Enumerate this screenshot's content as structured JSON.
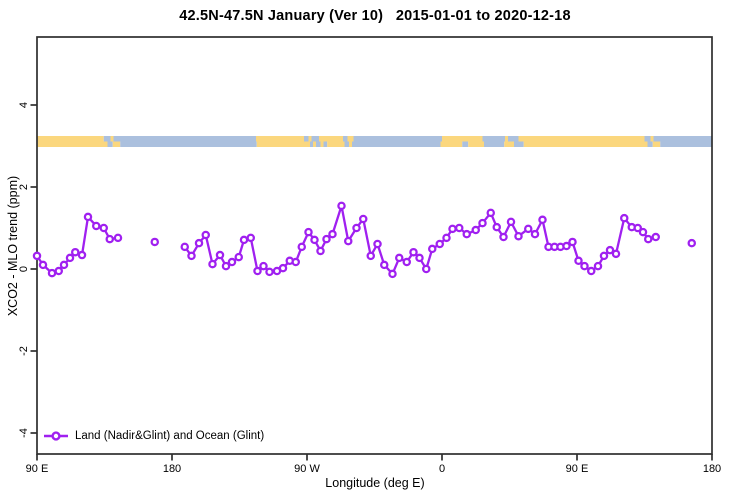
{
  "title": "42.5N-47.5N January (Ver 10)   2015-01-01 to 2020-12-18",
  "chart_data": {
    "type": "line",
    "title": "42.5N-47.5N January (Ver 10)   2015-01-01 to 2020-12-18",
    "xlabel": "Longitude (deg E)",
    "ylabel": "XCO2 - MLO trend (ppm)",
    "xlim": [
      90,
      540
    ],
    "ylim": [
      -4.5,
      5.65
    ],
    "x_axis_note": "x axis is continuous eastward longitude: 90 E, 180, 90 W, 0, 90 E, 180",
    "x_ticks": [
      {
        "pos": 90,
        "label": "90 E"
      },
      {
        "pos": 180,
        "label": "180"
      },
      {
        "pos": 270,
        "label": "90 W"
      },
      {
        "pos": 360,
        "label": "0"
      },
      {
        "pos": 450,
        "label": "90 E"
      },
      {
        "pos": 540,
        "label": "180"
      }
    ],
    "y_ticks": [
      {
        "pos": -4,
        "label": "-4"
      },
      {
        "pos": -2,
        "label": "-2"
      },
      {
        "pos": 0,
        "label": "0"
      },
      {
        "pos": 2,
        "label": "2"
      },
      {
        "pos": 4,
        "label": "4"
      }
    ],
    "grid": false,
    "legend": {
      "label": "Land (Nadir&Glint) and Ocean (Glint)",
      "position": "bottom-left",
      "marker": "open-circle-on-line"
    },
    "colors": {
      "series": "#A020F0",
      "marker_fill": "#ffffff",
      "land": "#FBD77E",
      "ocean": "#ABC0DE",
      "axis": "#2E2E2E",
      "text": "#000000"
    },
    "series": [
      {
        "name": "Land (Nadir&Glint) and Ocean (Glint)",
        "color": "#A020F0",
        "marker": "open-circle",
        "segments": [
          [
            [
              90,
              0.32
            ],
            [
              94,
              0.1
            ],
            [
              100,
              -0.1
            ],
            [
              104.5,
              -0.05
            ],
            [
              108,
              0.1
            ],
            [
              112,
              0.27
            ],
            [
              115.5,
              0.41
            ],
            [
              120,
              0.34
            ],
            [
              124,
              1.27
            ],
            [
              129.5,
              1.05
            ],
            [
              134.5,
              1.0
            ],
            [
              138.5,
              0.73
            ],
            [
              144,
              0.76
            ]
          ],
          [
            [
              168.5,
              0.66
            ]
          ],
          [
            [
              188.5,
              0.54
            ],
            [
              193,
              0.32
            ],
            [
              198,
              0.63
            ],
            [
              202.5,
              0.83
            ],
            [
              207,
              0.12
            ],
            [
              212,
              0.34
            ],
            [
              216,
              0.07
            ],
            [
              220,
              0.17
            ],
            [
              224.5,
              0.29
            ],
            [
              228,
              0.71
            ],
            [
              232.5,
              0.76
            ],
            [
              237,
              -0.05
            ],
            [
              241,
              0.07
            ],
            [
              245,
              -0.07
            ],
            [
              250,
              -0.05
            ],
            [
              254,
              0.02
            ],
            [
              258.5,
              0.2
            ],
            [
              262.5,
              0.17
            ],
            [
              266.5,
              0.54
            ],
            [
              271,
              0.9
            ],
            [
              275,
              0.71
            ],
            [
              279,
              0.44
            ],
            [
              283,
              0.73
            ],
            [
              287,
              0.85
            ],
            [
              293,
              1.54
            ],
            [
              297.5,
              0.68
            ],
            [
              303,
              1.0
            ],
            [
              307.5,
              1.22
            ],
            [
              312.5,
              0.32
            ],
            [
              317,
              0.61
            ],
            [
              321.5,
              0.1
            ],
            [
              327,
              -0.12
            ],
            [
              331.5,
              0.27
            ],
            [
              336.5,
              0.17
            ],
            [
              341,
              0.41
            ],
            [
              345,
              0.27
            ],
            [
              349.5,
              0.0
            ],
            [
              353.5,
              0.49
            ],
            [
              358.5,
              0.61
            ],
            [
              363,
              0.76
            ],
            [
              367,
              0.98
            ],
            [
              371.5,
              1.0
            ],
            [
              376.5,
              0.85
            ],
            [
              382.5,
              0.95
            ],
            [
              387,
              1.12
            ],
            [
              392.5,
              1.37
            ],
            [
              396.5,
              1.02
            ],
            [
              401,
              0.78
            ],
            [
              406,
              1.15
            ],
            [
              411,
              0.8
            ],
            [
              417.5,
              0.98
            ],
            [
              422,
              0.85
            ],
            [
              427,
              1.2
            ],
            [
              431,
              0.54
            ],
            [
              435,
              0.54
            ],
            [
              439,
              0.54
            ],
            [
              443,
              0.56
            ],
            [
              447,
              0.66
            ],
            [
              451,
              0.2
            ],
            [
              455,
              0.07
            ],
            [
              459.5,
              -0.05
            ],
            [
              464,
              0.07
            ],
            [
              468,
              0.32
            ],
            [
              472,
              0.46
            ],
            [
              476,
              0.37
            ],
            [
              481.5,
              1.24
            ],
            [
              486.5,
              1.02
            ],
            [
              490.5,
              1.0
            ],
            [
              494,
              0.9
            ],
            [
              497.5,
              0.73
            ],
            [
              502.5,
              0.78
            ]
          ],
          [
            [
              526.5,
              0.63
            ]
          ]
        ]
      }
    ],
    "map_strip": {
      "description": "land/ocean strip drawn across the plot near y=3.1 ppm",
      "rows": [
        {
          "segments": [
            [
              90,
              134.5,
              "land"
            ],
            [
              134.5,
              139,
              "ocean"
            ],
            [
              139,
              141,
              "land"
            ],
            [
              141,
              236,
              "ocean"
            ],
            [
              236,
              268,
              "land"
            ],
            [
              268,
              271,
              "ocean"
            ],
            [
              271,
              273,
              "land"
            ],
            [
              273,
              278,
              "ocean"
            ],
            [
              278,
              294,
              "land"
            ],
            [
              294,
              297,
              "ocean"
            ],
            [
              297,
              301,
              "land"
            ],
            [
              301,
              360,
              "ocean"
            ],
            [
              360,
              387,
              "land"
            ],
            [
              387,
              402,
              "ocean"
            ],
            [
              402,
              404,
              "land"
            ],
            [
              404,
              411,
              "ocean"
            ],
            [
              411,
              495,
              "land"
            ],
            [
              495,
              499,
              "ocean"
            ],
            [
              499,
              501,
              "land"
            ],
            [
              501,
              540,
              "ocean"
            ]
          ]
        },
        {
          "segments": [
            [
              90,
              137,
              "land"
            ],
            [
              137,
              140.5,
              "ocean"
            ],
            [
              140.5,
              145.5,
              "land"
            ],
            [
              145.5,
              236.5,
              "ocean"
            ],
            [
              236.5,
              272,
              "land"
            ],
            [
              272,
              274,
              "ocean"
            ],
            [
              274,
              276,
              "land"
            ],
            [
              276,
              279,
              "ocean"
            ],
            [
              279,
              281,
              "land"
            ],
            [
              281,
              283.5,
              "ocean"
            ],
            [
              283.5,
              295,
              "land"
            ],
            [
              295,
              298,
              "ocean"
            ],
            [
              298,
              300,
              "land"
            ],
            [
              300,
              359,
              "ocean"
            ],
            [
              359,
              373.5,
              "land"
            ],
            [
              373.5,
              377.5,
              "ocean"
            ],
            [
              377.5,
              388,
              "land"
            ],
            [
              388,
              401.5,
              "ocean"
            ],
            [
              401.5,
              408,
              "land"
            ],
            [
              408,
              414.5,
              "ocean"
            ],
            [
              414.5,
              497,
              "land"
            ],
            [
              497,
              500.5,
              "ocean"
            ],
            [
              500.5,
              505.5,
              "land"
            ],
            [
              505.5,
              540,
              "ocean"
            ]
          ]
        }
      ]
    }
  }
}
